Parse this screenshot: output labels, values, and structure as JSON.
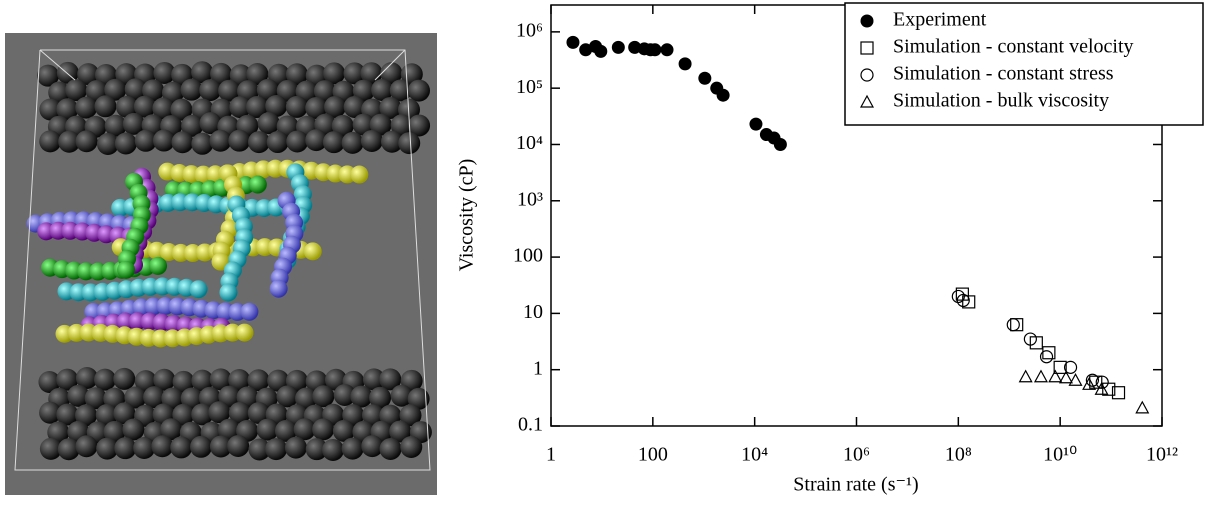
{
  "chart_data": {
    "type": "scatter",
    "xlabel": "Strain rate (s⁻¹)",
    "ylabel": "Viscosity (cP)",
    "xscale": "log",
    "yscale": "log",
    "xlim": [
      1,
      1000000000000
    ],
    "ylim": [
      0.1,
      3000000
    ],
    "xticks": [
      1,
      100,
      {
        "value": 10000,
        "label": "10⁴"
      },
      {
        "value": 1000000,
        "label": "10⁶"
      },
      {
        "value": 100000000,
        "label": "10⁸"
      },
      {
        "value": 10000000000,
        "label": "10¹⁰"
      },
      {
        "value": 1000000000000,
        "label": "10¹²"
      }
    ],
    "yticks": [
      0.1,
      1,
      10,
      100,
      {
        "value": 1000,
        "label": "10³"
      },
      {
        "value": 10000,
        "label": "10⁴"
      },
      {
        "value": 100000,
        "label": "10⁵"
      },
      {
        "value": 1000000,
        "label": "10⁶"
      }
    ],
    "legend": "upper right",
    "series": [
      {
        "name": "Experiment",
        "marker": "filled-circle",
        "color": "#000000",
        "x": [
          2.7,
          4.8,
          7.5,
          9.5,
          21,
          44,
          68,
          90,
          110,
          190,
          430,
          1050,
          1800,
          2400,
          10600,
          17000,
          24000,
          32000
        ],
        "values": [
          650000,
          480000,
          550000,
          450000,
          530000,
          530000,
          500000,
          480000,
          480000,
          480000,
          270000,
          150000,
          100000,
          75000,
          23000,
          15000,
          13000,
          10000
        ]
      },
      {
        "name": "Simulation - constant velocity",
        "marker": "square",
        "color": "#000000",
        "x": [
          120000000,
          160000000,
          1400000000,
          3400000000,
          6000000000,
          10000000000,
          50000000000,
          90000000000,
          140000000000
        ],
        "values": [
          22,
          16,
          6.3,
          3,
          2,
          1.1,
          0.6,
          0.45,
          0.39
        ]
      },
      {
        "name": "Simulation - constant stress",
        "marker": "circle",
        "color": "#000000",
        "x": [
          100000000,
          125000000,
          1200000000,
          2600000000,
          5400000000,
          16000000000,
          43000000000,
          67000000000
        ],
        "values": [
          20,
          17,
          6.3,
          3.5,
          1.7,
          1.1,
          0.65,
          0.6
        ]
      },
      {
        "name": "Simulation - bulk viscosity",
        "marker": "triangle",
        "color": "#000000",
        "x": [
          2100000000,
          4200000000,
          8000000000,
          13000000000,
          20000000000,
          37000000000,
          65000000000,
          410000000000
        ],
        "values": [
          0.75,
          0.75,
          0.75,
          0.72,
          0.65,
          0.55,
          0.45,
          0.21
        ]
      }
    ]
  }
}
